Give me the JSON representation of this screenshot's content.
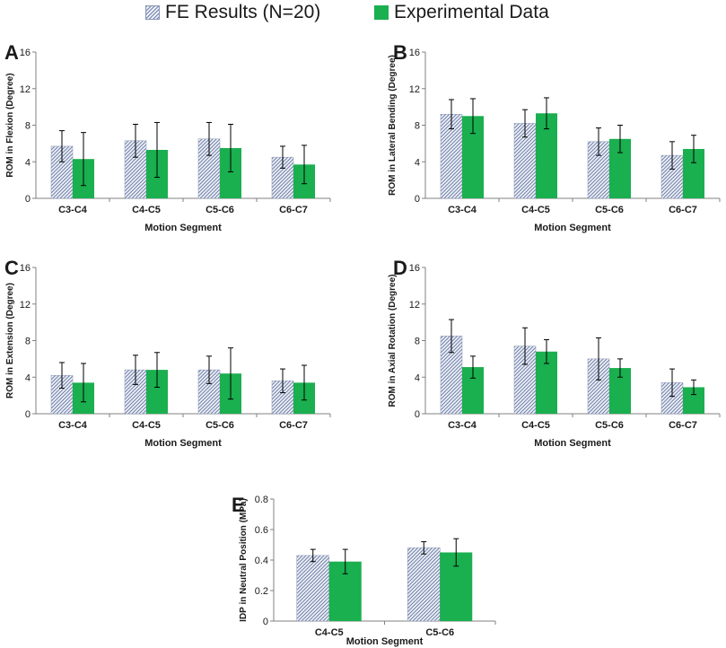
{
  "legend": {
    "fe_label": "FE Results (N=20)",
    "exp_label": "Experimental Data"
  },
  "colors": {
    "fe_hatch_line": "#6f7fa8",
    "fe_bg": "#eef1f7",
    "fe_border": "#8a96b5",
    "exp": "#1aaf4f",
    "axis": "#808080",
    "text": "#1a1a1a"
  },
  "chart_data": [
    {
      "panel": "A",
      "type": "bar",
      "xlabel": "Motion Segment",
      "ylabel": "ROM in Flexion (Degree)",
      "ylim": [
        0,
        16
      ],
      "yticks": [
        "0",
        "4",
        "8",
        "12",
        "16"
      ],
      "categories": [
        "C3-C4",
        "C4-C5",
        "C5-C6",
        "C6-C7"
      ],
      "series": [
        {
          "name": "FE Results (N=20)",
          "values": [
            5.7,
            6.3,
            6.5,
            4.5
          ],
          "errors": [
            1.7,
            1.8,
            1.8,
            1.2
          ]
        },
        {
          "name": "Experimental Data",
          "values": [
            4.3,
            5.3,
            5.5,
            3.7
          ],
          "errors": [
            2.9,
            3.0,
            2.6,
            2.1
          ]
        }
      ]
    },
    {
      "panel": "B",
      "type": "bar",
      "xlabel": "Motion Segment",
      "ylabel": "ROM in Lateral Bending (Degree)",
      "ylim": [
        0,
        16
      ],
      "yticks": [
        "0",
        "4",
        "8",
        "12",
        "16"
      ],
      "categories": [
        "C3-C4",
        "C4-C5",
        "C5-C6",
        "C6-C7"
      ],
      "series": [
        {
          "name": "FE Results (N=20)",
          "values": [
            9.2,
            8.2,
            6.2,
            4.7
          ],
          "errors": [
            1.6,
            1.5,
            1.5,
            1.5
          ]
        },
        {
          "name": "Experimental Data",
          "values": [
            9.0,
            9.3,
            6.5,
            5.4
          ],
          "errors": [
            1.9,
            1.7,
            1.5,
            1.5
          ]
        }
      ]
    },
    {
      "panel": "C",
      "type": "bar",
      "xlabel": "Motion Segment",
      "ylabel": "ROM in Extension (Degree)",
      "ylim": [
        0,
        16
      ],
      "yticks": [
        "0",
        "4",
        "8",
        "12",
        "16"
      ],
      "categories": [
        "C3-C4",
        "C4-C5",
        "C5-C6",
        "C6-C7"
      ],
      "series": [
        {
          "name": "FE Results (N=20)",
          "values": [
            4.2,
            4.8,
            4.8,
            3.6
          ],
          "errors": [
            1.4,
            1.6,
            1.5,
            1.3
          ]
        },
        {
          "name": "Experimental Data",
          "values": [
            3.4,
            4.8,
            4.4,
            3.4
          ],
          "errors": [
            2.1,
            1.9,
            2.8,
            1.9
          ]
        }
      ]
    },
    {
      "panel": "D",
      "type": "bar",
      "xlabel": "Motion Segment",
      "ylabel": "ROM in Axial Rotation (Degree)",
      "ylim": [
        0,
        16
      ],
      "yticks": [
        "0",
        "4",
        "8",
        "12",
        "16"
      ],
      "categories": [
        "C3-C4",
        "C4-C5",
        "C5-C6",
        "C6-C7"
      ],
      "series": [
        {
          "name": "FE Results (N=20)",
          "values": [
            8.5,
            7.4,
            6.0,
            3.4
          ],
          "errors": [
            1.8,
            2.0,
            2.3,
            1.5
          ]
        },
        {
          "name": "Experimental Data",
          "values": [
            5.1,
            6.8,
            5.0,
            2.9
          ],
          "errors": [
            1.2,
            1.3,
            1.0,
            0.8
          ]
        }
      ]
    },
    {
      "panel": "E",
      "type": "bar",
      "xlabel": "Motion Segment",
      "ylabel": "IDP in Neutral Position (MPa)",
      "ylim": [
        0,
        0.8
      ],
      "yticks": [
        "0",
        "0.2",
        "0.4",
        "0.6",
        "0.8"
      ],
      "categories": [
        "C4-C5",
        "C5-C6"
      ],
      "series": [
        {
          "name": "FE Results (N=20)",
          "values": [
            0.43,
            0.48
          ],
          "errors": [
            0.04,
            0.04
          ]
        },
        {
          "name": "Experimental Data",
          "values": [
            0.39,
            0.45
          ],
          "errors": [
            0.08,
            0.09
          ]
        }
      ]
    }
  ]
}
